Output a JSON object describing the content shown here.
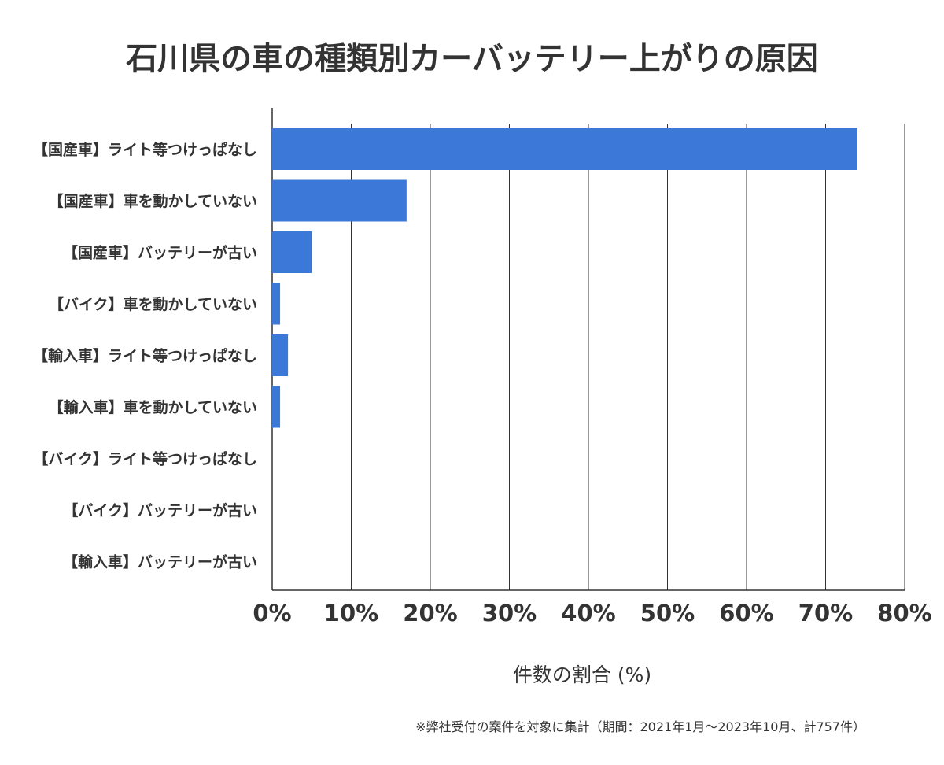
{
  "chart_data": {
    "type": "bar",
    "orientation": "horizontal",
    "title": "石川県の車の種類別カーバッテリー上がりの原因",
    "categories": [
      "【国産車】ライト等つけっぱなし",
      "【国産車】車を動かしていない",
      "【国産車】バッテリーが古い",
      "【バイク】車を動かしていない",
      "【輸入車】ライト等つけっぱなし",
      "【輸入車】車を動かしていない",
      "【バイク】ライト等つけっぱなし",
      "【バイク】バッテリーが古い",
      "【輸入車】バッテリーが古い"
    ],
    "values": [
      74.0,
      17.0,
      5.0,
      1.0,
      2.0,
      1.0,
      0,
      0,
      0
    ],
    "xlim": [
      0,
      80
    ],
    "xticks": [
      0,
      10,
      20,
      30,
      40,
      50,
      60,
      70,
      80
    ],
    "tick_suffix": "%",
    "xlabel": "件数の割合 (%)",
    "ylabel": "",
    "grid": true,
    "bar_color": "#3c78d8",
    "footnote": "※弊社受付の案件を対象に集計（期間：2021年1月～2023年10月、計757件）"
  }
}
